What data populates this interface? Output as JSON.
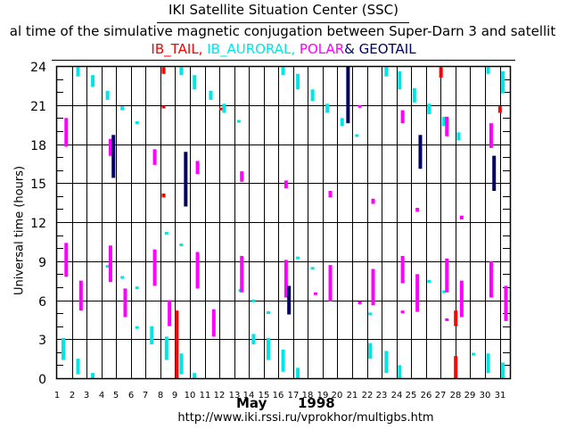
{
  "header": {
    "org_title": "IKI Satellite Situation Center (SSC)",
    "subtitle": "al time of the simulative magnetic conjugation between Super-Darn 3 and satellit",
    "legend": [
      {
        "label": "IB_TAIL,",
        "key": "IB_TAIL",
        "color": "#ff0000"
      },
      {
        "label": "IB_AURORAL,",
        "key": "IB_AURORAL",
        "color": "#00e5e5"
      },
      {
        "label": "POLAR",
        "key": "POLAR",
        "color": "#ff00ff"
      },
      {
        "label": "& GEOTAIL",
        "key": "GEOTAIL",
        "color": "#000066"
      }
    ]
  },
  "footer": {
    "month": "May",
    "year": "1998",
    "url": "http://www.iki.rssi.ru/vprokhor/multigbs.htm"
  },
  "chart_data": {
    "type": "scatter",
    "title": "IKI Satellite Situation Center (SSC)",
    "xlabel": "May 1998",
    "ylabel": "Universal time (hours)",
    "xlim": [
      1,
      31.8
    ],
    "ylim": [
      0,
      24
    ],
    "x_ticks": [
      "1",
      "2",
      "3",
      "4",
      "5",
      "6",
      "7",
      "8",
      "9",
      "10",
      "11",
      "12",
      "13",
      "14",
      "15",
      "16",
      "17",
      "18",
      "19",
      "20",
      "21",
      "22",
      "23",
      "24",
      "25",
      "26",
      "27",
      "28",
      "29",
      "30",
      "31"
    ],
    "y_ticks": [
      "0",
      "3",
      "6",
      "9",
      "12",
      "15",
      "18",
      "21",
      "24"
    ],
    "grid": true,
    "legend_position": "top",
    "series": [
      {
        "name": "IB_TAIL",
        "color": "#ff0000",
        "segments": [
          [
            8.1,
            23.4,
            23.9
          ],
          [
            8.1,
            20.8,
            20.95
          ],
          [
            8.1,
            13.9,
            14.2
          ],
          [
            9.0,
            0,
            5.2
          ],
          [
            12.0,
            20.6,
            20.8
          ],
          [
            26.9,
            23.1,
            23.9
          ],
          [
            27.9,
            4.0,
            5.2
          ],
          [
            27.9,
            0,
            1.7
          ],
          [
            30.9,
            20.4,
            20.9
          ]
        ]
      },
      {
        "name": "IB_AURORAL",
        "color": "#00e5e5",
        "segments": [
          [
            1.3,
            1.4,
            3.1
          ],
          [
            2.3,
            23.2,
            23.9
          ],
          [
            2.3,
            0.3,
            1.5
          ],
          [
            3.3,
            22.4,
            23.3
          ],
          [
            3.3,
            0,
            0.4
          ],
          [
            4.3,
            21.4,
            22.1
          ],
          [
            4.3,
            8.55,
            8.7
          ],
          [
            5.3,
            20.6,
            20.9
          ],
          [
            5.3,
            7.7,
            7.85
          ],
          [
            6.3,
            19.6,
            19.75
          ],
          [
            6.3,
            6.95,
            7.05
          ],
          [
            6.3,
            3.8,
            4.0
          ],
          [
            7.3,
            2.6,
            4.0
          ],
          [
            8.3,
            1.4,
            3.2
          ],
          [
            8.3,
            11.15,
            11.25
          ],
          [
            9.3,
            23.3,
            23.9
          ],
          [
            9.3,
            10.25,
            10.35
          ],
          [
            9.3,
            0.3,
            1.9
          ],
          [
            10.2,
            22.2,
            23.3
          ],
          [
            10.2,
            0,
            0.4
          ],
          [
            11.3,
            21.4,
            22.1
          ],
          [
            12.2,
            20.4,
            21.1
          ],
          [
            13.2,
            19.75,
            19.85
          ],
          [
            13.3,
            6.75,
            6.85
          ],
          [
            14.2,
            2.6,
            3.4
          ],
          [
            14.2,
            5.95,
            6.05
          ],
          [
            15.2,
            1.4,
            3.1
          ],
          [
            15.2,
            5.05,
            5.15
          ],
          [
            16.2,
            23.3,
            23.9
          ],
          [
            16.2,
            0.5,
            2.2
          ],
          [
            17.2,
            22.2,
            23.4
          ],
          [
            17.2,
            0,
            0.8
          ],
          [
            17.2,
            9.25,
            9.35
          ],
          [
            18.2,
            21.3,
            22.2
          ],
          [
            18.2,
            8.45,
            8.55
          ],
          [
            19.2,
            20.4,
            21.1
          ],
          [
            20.2,
            19.4,
            20.0
          ],
          [
            21.2,
            18.65,
            18.75
          ],
          [
            22.1,
            4.95,
            5.05
          ],
          [
            22.1,
            1.5,
            2.7
          ],
          [
            23.2,
            23.2,
            23.9
          ],
          [
            23.2,
            0.4,
            2.1
          ],
          [
            24.1,
            22.2,
            23.6
          ],
          [
            24.1,
            0,
            1.0
          ],
          [
            25.1,
            21.2,
            22.3
          ],
          [
            26.1,
            20.3,
            21.1
          ],
          [
            26.1,
            7.45,
            7.55
          ],
          [
            27.1,
            19.4,
            20.1
          ],
          [
            27.1,
            6.65,
            6.75
          ],
          [
            28.1,
            18.3,
            18.9
          ],
          [
            29.1,
            1.85,
            1.95
          ],
          [
            30.1,
            23.4,
            23.9
          ],
          [
            30.1,
            0.4,
            1.9
          ],
          [
            31.1,
            21.9,
            23.6
          ],
          [
            31.1,
            0,
            1.2
          ]
        ]
      },
      {
        "name": "POLAR",
        "color": "#ff00ff",
        "segments": [
          [
            1.5,
            17.8,
            20.0
          ],
          [
            1.5,
            7.8,
            10.4
          ],
          [
            2.5,
            5.2,
            7.5
          ],
          [
            4.5,
            17.1,
            18.4
          ],
          [
            4.5,
            7.4,
            10.2
          ],
          [
            5.5,
            4.7,
            6.9
          ],
          [
            7.5,
            16.4,
            17.6
          ],
          [
            7.5,
            7.1,
            9.9
          ],
          [
            8.5,
            4.0,
            6.0
          ],
          [
            10.4,
            15.7,
            16.7
          ],
          [
            10.4,
            6.9,
            9.7
          ],
          [
            11.5,
            3.2,
            5.3
          ],
          [
            13.4,
            15.1,
            15.9
          ],
          [
            13.4,
            6.6,
            9.4
          ],
          [
            16.4,
            14.6,
            15.2
          ],
          [
            16.4,
            6.2,
            9.1
          ],
          [
            18.4,
            6.45,
            6.6
          ],
          [
            19.4,
            13.9,
            14.4
          ],
          [
            19.4,
            5.9,
            8.7
          ],
          [
            21.4,
            20.8,
            21.0
          ],
          [
            21.4,
            5.75,
            5.9
          ],
          [
            22.3,
            13.4,
            13.8
          ],
          [
            22.3,
            5.6,
            8.4
          ],
          [
            24.3,
            19.6,
            20.6
          ],
          [
            24.3,
            7.3,
            9.4
          ],
          [
            24.3,
            5.05,
            5.2
          ],
          [
            25.3,
            12.8,
            13.1
          ],
          [
            25.3,
            5.1,
            8.0
          ],
          [
            27.3,
            18.6,
            20.1
          ],
          [
            27.3,
            6.6,
            9.2
          ],
          [
            27.3,
            4.45,
            4.6
          ],
          [
            28.3,
            12.2,
            12.5
          ],
          [
            28.3,
            4.7,
            7.5
          ],
          [
            30.3,
            17.7,
            19.6
          ],
          [
            30.3,
            6.2,
            9.0
          ],
          [
            31.3,
            4.4,
            7.1
          ]
        ]
      },
      {
        "name": "GEOTAIL",
        "color": "#000066",
        "segments": [
          [
            4.7,
            15.4,
            18.7
          ],
          [
            9.6,
            13.2,
            17.4
          ],
          [
            16.6,
            4.9,
            7.1
          ],
          [
            20.6,
            19.6,
            24.0
          ],
          [
            25.5,
            16.1,
            18.7
          ],
          [
            30.5,
            14.4,
            17.1
          ]
        ]
      }
    ]
  }
}
